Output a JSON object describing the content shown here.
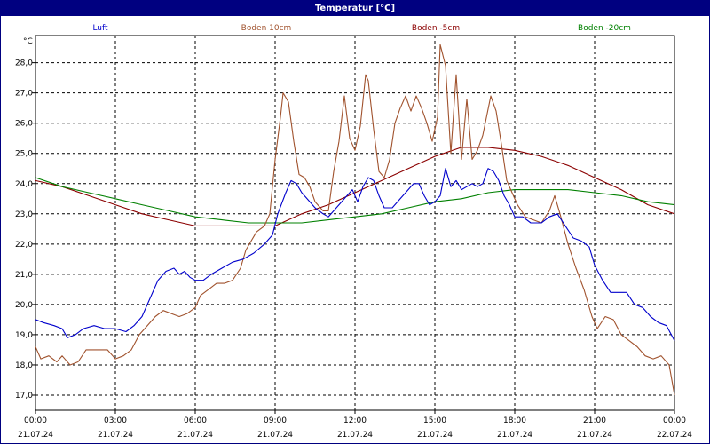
{
  "window": {
    "title": "Temperatur [°C]"
  },
  "chart_data": {
    "type": "line",
    "title": "Temperatur [°C]",
    "ylabel": "°C",
    "xlabel": "",
    "xlim": [
      0,
      24
    ],
    "ylim": [
      16.5,
      28.9
    ],
    "grid": true,
    "legend": "top",
    "y_ticks": [
      {
        "value": 17,
        "label": "17,0"
      },
      {
        "value": 18,
        "label": "18,0"
      },
      {
        "value": 19,
        "label": "19,0"
      },
      {
        "value": 20,
        "label": "20,0"
      },
      {
        "value": 21,
        "label": "21,0"
      },
      {
        "value": 22,
        "label": "22,0"
      },
      {
        "value": 23,
        "label": "23,0"
      },
      {
        "value": 24,
        "label": "24,0"
      },
      {
        "value": 25,
        "label": "25,0"
      },
      {
        "value": 26,
        "label": "26,0"
      },
      {
        "value": 27,
        "label": "27,0"
      },
      {
        "value": 28,
        "label": "28,0"
      }
    ],
    "x_ticks": [
      {
        "value": 0,
        "time": "00:00",
        "date": "21.07.24"
      },
      {
        "value": 3,
        "time": "03:00",
        "date": "21.07.24"
      },
      {
        "value": 6,
        "time": "06:00",
        "date": "21.07.24"
      },
      {
        "value": 9,
        "time": "09:00",
        "date": "21.07.24"
      },
      {
        "value": 12,
        "time": "12:00",
        "date": "21.07.24"
      },
      {
        "value": 15,
        "time": "15:00",
        "date": "21.07.24"
      },
      {
        "value": 18,
        "time": "18:00",
        "date": "21.07.24"
      },
      {
        "value": 21,
        "time": "21:00",
        "date": "21.07.24"
      },
      {
        "value": 24,
        "time": "00:00",
        "date": "22.07.24"
      }
    ],
    "series": [
      {
        "name": "Luft",
        "color": "#0000cc",
        "points": [
          [
            0,
            19.5
          ],
          [
            0.3,
            19.4
          ],
          [
            0.7,
            19.3
          ],
          [
            1.0,
            19.2
          ],
          [
            1.2,
            18.9
          ],
          [
            1.5,
            19.0
          ],
          [
            1.8,
            19.2
          ],
          [
            2.2,
            19.3
          ],
          [
            2.6,
            19.2
          ],
          [
            3.0,
            19.2
          ],
          [
            3.4,
            19.1
          ],
          [
            3.7,
            19.3
          ],
          [
            4.0,
            19.6
          ],
          [
            4.3,
            20.2
          ],
          [
            4.6,
            20.8
          ],
          [
            4.9,
            21.1
          ],
          [
            5.2,
            21.2
          ],
          [
            5.4,
            21.0
          ],
          [
            5.6,
            21.1
          ],
          [
            5.8,
            20.9
          ],
          [
            6.0,
            20.8
          ],
          [
            6.3,
            20.8
          ],
          [
            6.6,
            21.0
          ],
          [
            7.0,
            21.2
          ],
          [
            7.4,
            21.4
          ],
          [
            7.8,
            21.5
          ],
          [
            8.2,
            21.7
          ],
          [
            8.6,
            22.0
          ],
          [
            8.9,
            22.3
          ],
          [
            9.1,
            23.0
          ],
          [
            9.4,
            23.7
          ],
          [
            9.6,
            24.1
          ],
          [
            9.8,
            24.0
          ],
          [
            10.0,
            23.7
          ],
          [
            10.2,
            23.5
          ],
          [
            10.5,
            23.2
          ],
          [
            10.8,
            23.0
          ],
          [
            11.0,
            22.9
          ],
          [
            11.3,
            23.2
          ],
          [
            11.6,
            23.5
          ],
          [
            11.9,
            23.8
          ],
          [
            12.1,
            23.4
          ],
          [
            12.3,
            23.9
          ],
          [
            12.5,
            24.2
          ],
          [
            12.7,
            24.1
          ],
          [
            12.9,
            23.6
          ],
          [
            13.1,
            23.2
          ],
          [
            13.4,
            23.2
          ],
          [
            13.7,
            23.5
          ],
          [
            14.0,
            23.8
          ],
          [
            14.2,
            24.0
          ],
          [
            14.4,
            24.0
          ],
          [
            14.6,
            23.6
          ],
          [
            14.8,
            23.3
          ],
          [
            15.0,
            23.4
          ],
          [
            15.2,
            23.6
          ],
          [
            15.4,
            24.5
          ],
          [
            15.6,
            23.9
          ],
          [
            15.8,
            24.1
          ],
          [
            16.0,
            23.8
          ],
          [
            16.2,
            23.9
          ],
          [
            16.4,
            24.0
          ],
          [
            16.6,
            23.9
          ],
          [
            16.8,
            24.0
          ],
          [
            17.0,
            24.5
          ],
          [
            17.2,
            24.4
          ],
          [
            17.4,
            24.1
          ],
          [
            17.6,
            23.6
          ],
          [
            17.8,
            23.3
          ],
          [
            18.0,
            22.9
          ],
          [
            18.3,
            22.9
          ],
          [
            18.6,
            22.7
          ],
          [
            19.0,
            22.7
          ],
          [
            19.3,
            22.9
          ],
          [
            19.6,
            23.0
          ],
          [
            19.9,
            22.6
          ],
          [
            20.2,
            22.2
          ],
          [
            20.5,
            22.1
          ],
          [
            20.8,
            21.9
          ],
          [
            21.0,
            21.3
          ],
          [
            21.3,
            20.8
          ],
          [
            21.6,
            20.4
          ],
          [
            21.9,
            20.4
          ],
          [
            22.2,
            20.4
          ],
          [
            22.5,
            20.0
          ],
          [
            22.8,
            19.9
          ],
          [
            23.1,
            19.6
          ],
          [
            23.4,
            19.4
          ],
          [
            23.7,
            19.3
          ],
          [
            24.0,
            18.8
          ]
        ]
      },
      {
        "name": "Boden 10cm",
        "color": "#a0522d",
        "points": [
          [
            0,
            18.6
          ],
          [
            0.2,
            18.2
          ],
          [
            0.5,
            18.3
          ],
          [
            0.8,
            18.1
          ],
          [
            1.0,
            18.3
          ],
          [
            1.3,
            18.0
          ],
          [
            1.6,
            18.1
          ],
          [
            1.9,
            18.5
          ],
          [
            2.3,
            18.5
          ],
          [
            2.7,
            18.5
          ],
          [
            3.0,
            18.2
          ],
          [
            3.3,
            18.3
          ],
          [
            3.6,
            18.5
          ],
          [
            3.9,
            19.0
          ],
          [
            4.2,
            19.3
          ],
          [
            4.5,
            19.6
          ],
          [
            4.8,
            19.8
          ],
          [
            5.1,
            19.7
          ],
          [
            5.4,
            19.6
          ],
          [
            5.7,
            19.7
          ],
          [
            6.0,
            19.9
          ],
          [
            6.2,
            20.3
          ],
          [
            6.5,
            20.5
          ],
          [
            6.8,
            20.7
          ],
          [
            7.1,
            20.7
          ],
          [
            7.4,
            20.8
          ],
          [
            7.7,
            21.2
          ],
          [
            7.9,
            21.8
          ],
          [
            8.1,
            22.1
          ],
          [
            8.3,
            22.4
          ],
          [
            8.6,
            22.6
          ],
          [
            8.8,
            23.0
          ],
          [
            9.0,
            24.8
          ],
          [
            9.2,
            26.2
          ],
          [
            9.3,
            27.0
          ],
          [
            9.5,
            26.7
          ],
          [
            9.7,
            25.4
          ],
          [
            9.9,
            24.3
          ],
          [
            10.1,
            24.2
          ],
          [
            10.3,
            23.9
          ],
          [
            10.5,
            23.4
          ],
          [
            10.8,
            23.1
          ],
          [
            11.0,
            23.1
          ],
          [
            11.2,
            24.4
          ],
          [
            11.4,
            25.4
          ],
          [
            11.6,
            26.9
          ],
          [
            11.8,
            25.5
          ],
          [
            12.0,
            25.1
          ],
          [
            12.2,
            25.9
          ],
          [
            12.4,
            27.6
          ],
          [
            12.5,
            27.4
          ],
          [
            12.7,
            25.8
          ],
          [
            12.9,
            24.4
          ],
          [
            13.1,
            24.2
          ],
          [
            13.3,
            24.8
          ],
          [
            13.5,
            26.0
          ],
          [
            13.7,
            26.5
          ],
          [
            13.9,
            26.9
          ],
          [
            14.1,
            26.4
          ],
          [
            14.3,
            26.9
          ],
          [
            14.5,
            26.5
          ],
          [
            14.7,
            26.0
          ],
          [
            14.9,
            25.4
          ],
          [
            15.1,
            26.2
          ],
          [
            15.2,
            28.6
          ],
          [
            15.4,
            27.9
          ],
          [
            15.6,
            25.0
          ],
          [
            15.8,
            27.6
          ],
          [
            16.0,
            24.8
          ],
          [
            16.2,
            26.8
          ],
          [
            16.4,
            24.8
          ],
          [
            16.6,
            25.1
          ],
          [
            16.8,
            25.6
          ],
          [
            17.1,
            26.9
          ],
          [
            17.3,
            26.4
          ],
          [
            17.5,
            25.3
          ],
          [
            17.7,
            24.1
          ],
          [
            17.9,
            23.7
          ],
          [
            18.1,
            23.3
          ],
          [
            18.4,
            22.9
          ],
          [
            18.7,
            22.8
          ],
          [
            19.0,
            22.7
          ],
          [
            19.3,
            23.1
          ],
          [
            19.5,
            23.6
          ],
          [
            19.7,
            23.0
          ],
          [
            20.0,
            22.0
          ],
          [
            20.3,
            21.2
          ],
          [
            20.6,
            20.5
          ],
          [
            20.9,
            19.6
          ],
          [
            21.1,
            19.2
          ],
          [
            21.4,
            19.6
          ],
          [
            21.7,
            19.5
          ],
          [
            22.0,
            19.0
          ],
          [
            22.3,
            18.8
          ],
          [
            22.6,
            18.6
          ],
          [
            22.9,
            18.3
          ],
          [
            23.2,
            18.2
          ],
          [
            23.5,
            18.3
          ],
          [
            23.8,
            18.0
          ],
          [
            24.0,
            17.0
          ]
        ]
      },
      {
        "name": "Boden -5cm",
        "color": "#8b0000",
        "points": [
          [
            0,
            24.1
          ],
          [
            1,
            23.9
          ],
          [
            2,
            23.6
          ],
          [
            3,
            23.3
          ],
          [
            4,
            23.0
          ],
          [
            5,
            22.8
          ],
          [
            6,
            22.6
          ],
          [
            7,
            22.6
          ],
          [
            8,
            22.6
          ],
          [
            9,
            22.6
          ],
          [
            10,
            23.0
          ],
          [
            11,
            23.3
          ],
          [
            12,
            23.7
          ],
          [
            13,
            24.1
          ],
          [
            14,
            24.5
          ],
          [
            15,
            24.9
          ],
          [
            16,
            25.2
          ],
          [
            17,
            25.2
          ],
          [
            18,
            25.1
          ],
          [
            19,
            24.9
          ],
          [
            20,
            24.6
          ],
          [
            21,
            24.2
          ],
          [
            22,
            23.8
          ],
          [
            23,
            23.3
          ],
          [
            24,
            23.0
          ]
        ]
      },
      {
        "name": "Boden -20cm",
        "color": "#008000",
        "points": [
          [
            0,
            24.2
          ],
          [
            1,
            23.9
          ],
          [
            2,
            23.7
          ],
          [
            3,
            23.5
          ],
          [
            4,
            23.3
          ],
          [
            5,
            23.1
          ],
          [
            6,
            22.9
          ],
          [
            7,
            22.8
          ],
          [
            8,
            22.7
          ],
          [
            9,
            22.7
          ],
          [
            10,
            22.7
          ],
          [
            11,
            22.8
          ],
          [
            12,
            22.9
          ],
          [
            13,
            23.0
          ],
          [
            14,
            23.2
          ],
          [
            15,
            23.4
          ],
          [
            16,
            23.5
          ],
          [
            17,
            23.7
          ],
          [
            18,
            23.8
          ],
          [
            19,
            23.8
          ],
          [
            20,
            23.8
          ],
          [
            21,
            23.7
          ],
          [
            22,
            23.6
          ],
          [
            23,
            23.4
          ],
          [
            24,
            23.3
          ]
        ]
      }
    ]
  }
}
